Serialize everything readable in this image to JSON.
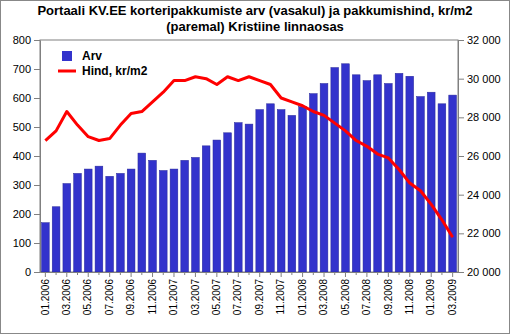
{
  "chart_data": {
    "type": "bar",
    "title": "Portaali KV.EE korteripakkumiste arv (vasakul) ja pakkumishind, kr/m2 (paremal) Kristiine linnaosas",
    "categories": [
      "01.2006",
      null,
      "03.2006",
      null,
      "05.2006",
      null,
      "07.2006",
      null,
      "09.2006",
      null,
      "11.2006",
      null,
      "01.2007",
      null,
      "03.2007",
      null,
      "05.2007",
      null,
      "07.2007",
      null,
      "09.2007",
      null,
      "11.2007",
      null,
      "01.2008",
      null,
      "03.2008",
      null,
      "05.2008",
      null,
      "07.2008",
      null,
      "09.2008",
      null,
      "11.2008",
      null,
      "01.2009",
      null,
      "03.2009"
    ],
    "series": [
      {
        "name": "Arv",
        "type": "bar",
        "color": "#3333cc",
        "values": [
          170,
          225,
          305,
          340,
          355,
          365,
          330,
          340,
          355,
          410,
          385,
          350,
          355,
          385,
          395,
          435,
          455,
          480,
          515,
          510,
          560,
          580,
          560,
          540,
          570,
          615,
          650,
          705,
          718,
          680,
          660,
          680,
          650,
          685,
          675,
          605,
          620,
          580,
          610
        ]
      },
      {
        "name": "Hind, kr/m2",
        "type": "line",
        "color": "#ff0000",
        "axis": "y2",
        "values": [
          26800,
          27300,
          28300,
          27600,
          27000,
          26800,
          26900,
          27600,
          28200,
          28300,
          28800,
          29300,
          29900,
          29900,
          30100,
          30000,
          29700,
          30100,
          29900,
          30100,
          29900,
          29700,
          29000,
          28800,
          28600,
          28300,
          28100,
          27700,
          27300,
          26800,
          26500,
          26100,
          25900,
          25300,
          24600,
          24200,
          23500,
          22700,
          21800
        ]
      }
    ],
    "ylim": [
      0,
      800
    ],
    "yticks": [
      0,
      100,
      200,
      300,
      400,
      500,
      600,
      700,
      800
    ],
    "y2lim": [
      20000,
      32000
    ],
    "y2ticks": [
      {
        "value": 20000,
        "label": "20 000"
      },
      {
        "value": 22000,
        "label": "22 000"
      },
      {
        "value": 24000,
        "label": "24 000"
      },
      {
        "value": 26000,
        "label": "26 000"
      },
      {
        "value": 28000,
        "label": "28 000"
      },
      {
        "value": 30000,
        "label": "30 000"
      },
      {
        "value": 32000,
        "label": "32 000"
      }
    ],
    "grid": false,
    "legend": "upper left"
  }
}
